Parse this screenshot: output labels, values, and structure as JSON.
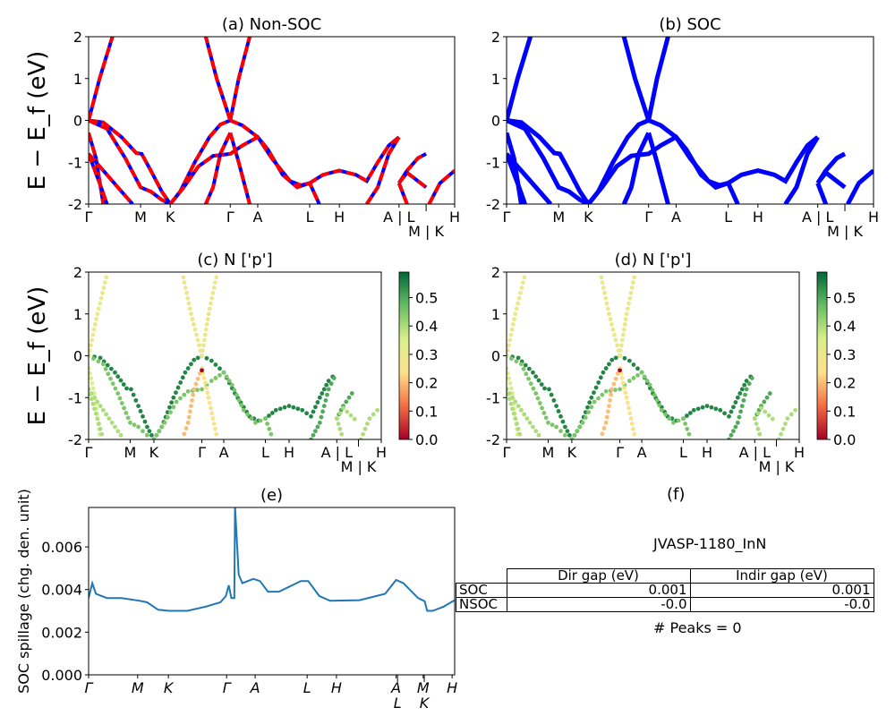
{
  "chart_data": [
    {
      "id": "a",
      "type": "line",
      "title": "(a) Non-SOC",
      "ylabel": "E − E_f (eV)",
      "ylim": [
        -2,
        2
      ],
      "yticks": [
        -2,
        -1,
        0,
        1,
        2
      ],
      "xtick_labels": [
        "Γ",
        "M",
        "K",
        "Γ",
        "A",
        "L",
        "H",
        "A | L",
        "M | K",
        "H"
      ],
      "series_colors": [
        "#0000ff",
        "#ff0000"
      ],
      "line_style": "blue solid with red dashed overlay"
    },
    {
      "id": "b",
      "type": "line",
      "title": "(b) SOC",
      "ylim": [
        -2,
        2
      ],
      "yticks": [
        -2,
        -1,
        0,
        1,
        2
      ],
      "xtick_labels": [
        "Γ",
        "M",
        "K",
        "Γ",
        "A",
        "L",
        "H",
        "A | L",
        "M | K",
        "H"
      ],
      "series_colors": [
        "#0000ff"
      ]
    },
    {
      "id": "c",
      "type": "scatter",
      "title": "(c)  N ['p']",
      "ylabel": "E − E_f (eV)",
      "ylim": [
        -2,
        2
      ],
      "yticks": [
        -2,
        -1,
        0,
        1,
        2
      ],
      "xtick_labels": [
        "Γ",
        "M",
        "K",
        "Γ",
        "A",
        "L",
        "H",
        "A | L",
        "M | K",
        "H"
      ],
      "colorbar": {
        "colormap": "RdYlGn",
        "range": [
          0,
          0.59
        ],
        "ticks": [
          "0.0",
          "0.1",
          "0.2",
          "0.3",
          "0.4",
          "0.5"
        ]
      }
    },
    {
      "id": "d",
      "type": "scatter",
      "title": "(d) N ['p']",
      "ylim": [
        -2,
        2
      ],
      "yticks": [
        -2,
        -1,
        0,
        1,
        2
      ],
      "xtick_labels": [
        "Γ",
        "M",
        "K",
        "Γ",
        "A",
        "L",
        "H",
        "A | L",
        "M | K",
        "H"
      ],
      "colorbar": {
        "colormap": "RdYlGn",
        "range": [
          0,
          0.59
        ],
        "ticks": [
          "0.0",
          "0.1",
          "0.2",
          "0.3",
          "0.4",
          "0.5"
        ]
      }
    },
    {
      "id": "e",
      "type": "line",
      "title": "(e)",
      "ylabel": "SOC spillage (chg. den. unit)",
      "ylim": [
        0,
        0.00785
      ],
      "yticks": [
        "0.000",
        "0.002",
        "0.004",
        "0.006"
      ],
      "xtick_labels": [
        "Γ",
        "M",
        "K",
        "Γ",
        "A",
        "L",
        "H",
        "A",
        "L",
        "M",
        "K",
        "H"
      ],
      "color": "#1f77b4",
      "points": [
        [
          0,
          0.0036
        ],
        [
          0.01,
          0.0043
        ],
        [
          0.02,
          0.0038
        ],
        [
          0.05,
          0.0036
        ],
        [
          0.09,
          0.0036
        ],
        [
          0.14,
          0.00347
        ],
        [
          0.16,
          0.0034
        ],
        [
          0.19,
          0.00305
        ],
        [
          0.22,
          0.003
        ],
        [
          0.27,
          0.003
        ],
        [
          0.32,
          0.0032
        ],
        [
          0.36,
          0.0034
        ],
        [
          0.375,
          0.0037
        ],
        [
          0.383,
          0.0042
        ],
        [
          0.39,
          0.0036
        ],
        [
          0.398,
          0.0036
        ],
        [
          0.4,
          0.0079
        ],
        [
          0.41,
          0.0047
        ],
        [
          0.42,
          0.0043
        ],
        [
          0.45,
          0.0045
        ],
        [
          0.468,
          0.0044
        ],
        [
          0.49,
          0.0039
        ],
        [
          0.52,
          0.0039
        ],
        [
          0.58,
          0.0044
        ],
        [
          0.6,
          0.0044
        ],
        [
          0.63,
          0.0037
        ],
        [
          0.66,
          0.00347
        ],
        [
          0.74,
          0.0035
        ],
        [
          0.81,
          0.0038
        ],
        [
          0.84,
          0.00445
        ],
        [
          0.86,
          0.0043
        ],
        [
          0.9,
          0.0036
        ],
        [
          0.918,
          0.00345
        ],
        [
          0.925,
          0.003
        ],
        [
          0.94,
          0.003
        ],
        [
          0.97,
          0.0032
        ],
        [
          1.0,
          0.0035
        ]
      ]
    }
  ],
  "bands": [
    {
      "w": 0.55,
      "pts": [
        [
          0,
          0
        ],
        [
          0.04,
          -0.05
        ],
        [
          0.09,
          -0.4
        ],
        [
          0.13,
          -0.78
        ],
        [
          0.145,
          -0.8
        ],
        [
          0.17,
          -1.2
        ],
        [
          0.2,
          -1.7
        ],
        [
          0.223,
          -2.0
        ],
        [
          0.25,
          -1.7
        ],
        [
          0.29,
          -1.0
        ],
        [
          0.33,
          -0.4
        ],
        [
          0.36,
          -0.1
        ],
        [
          0.387,
          0
        ],
        [
          0.42,
          -0.12
        ],
        [
          0.462,
          -0.4
        ],
        [
          0.5,
          -0.9
        ],
        [
          0.55,
          -1.45
        ],
        [
          0.58,
          -1.55
        ],
        [
          0.604,
          -1.5
        ],
        [
          0.64,
          -1.3
        ],
        [
          0.685,
          -1.2
        ],
        [
          0.73,
          -1.3
        ],
        [
          0.76,
          -1.45
        ],
        [
          0.79,
          -1.0
        ],
        [
          0.82,
          -0.6
        ],
        [
          0.848,
          -0.4
        ]
      ]
    },
    {
      "w": 0.45,
      "pts": [
        [
          0,
          0
        ],
        [
          0.05,
          -0.2
        ],
        [
          0.1,
          -0.9
        ],
        [
          0.142,
          -1.6
        ],
        [
          0.17,
          -1.7
        ],
        [
          0.2,
          -1.9
        ],
        [
          0.223,
          -2.0
        ]
      ]
    },
    {
      "w": 0.45,
      "pts": [
        [
          0.223,
          -2
        ],
        [
          0.26,
          -1.6
        ],
        [
          0.3,
          -1.1
        ],
        [
          0.34,
          -0.85
        ],
        [
          0.387,
          -0.8
        ],
        [
          0.42,
          -0.6
        ],
        [
          0.462,
          -0.4
        ],
        [
          0.49,
          -0.7
        ],
        [
          0.53,
          -1.3
        ],
        [
          0.57,
          -1.6
        ],
        [
          0.604,
          -1.5
        ],
        [
          0.63,
          -2.0
        ]
      ]
    },
    {
      "w": 0.2,
      "pts": [
        [
          0.387,
          -0.3
        ],
        [
          0.36,
          -0.8
        ],
        [
          0.34,
          -1.6
        ],
        [
          0.32,
          -2
        ]
      ]
    },
    {
      "w": 0.25,
      "pts": [
        [
          0.387,
          -0.3
        ],
        [
          0.41,
          -1.0
        ],
        [
          0.44,
          -2
        ]
      ]
    },
    {
      "w": 0.3,
      "pts": [
        [
          0,
          0
        ],
        [
          0.03,
          1.0
        ],
        [
          0.065,
          2
        ]
      ]
    },
    {
      "w": 0.3,
      "pts": [
        [
          0.387,
          0
        ],
        [
          0.35,
          1.0
        ],
        [
          0.32,
          2
        ]
      ]
    },
    {
      "w": 0.3,
      "pts": [
        [
          0.387,
          0
        ],
        [
          0.41,
          1.0
        ],
        [
          0.44,
          2
        ]
      ]
    },
    {
      "w": 0.35,
      "pts": [
        [
          0,
          -0.3
        ],
        [
          0.02,
          -0.9
        ],
        [
          0.04,
          -2
        ]
      ]
    },
    {
      "w": 0.4,
      "pts": [
        [
          0,
          -0.8
        ],
        [
          0.04,
          -1.2
        ],
        [
          0.1,
          -1.8
        ],
        [
          0.12,
          -2
        ]
      ]
    },
    {
      "w": 0.4,
      "pts": [
        [
          0,
          -0.8
        ],
        [
          0.03,
          -1.5
        ],
        [
          0.05,
          -2
        ]
      ]
    },
    {
      "w": 0.5,
      "pts": [
        [
          0.76,
          -2
        ],
        [
          0.79,
          -1.6
        ],
        [
          0.82,
          -0.8
        ],
        [
          0.848,
          -0.4
        ]
      ]
    },
    {
      "w": 0.5,
      "pts": [
        [
          0.848,
          -1.5
        ],
        [
          0.87,
          -1.2
        ],
        [
          0.9,
          -0.9
        ],
        [
          0.922,
          -0.8
        ]
      ]
    },
    {
      "w": 0.4,
      "pts": [
        [
          0.848,
          -1.5
        ],
        [
          0.87,
          -1.25
        ],
        [
          0.922,
          -1.6
        ]
      ]
    },
    {
      "w": 0.4,
      "pts": [
        [
          0.848,
          -1.5
        ],
        [
          0.87,
          -2
        ]
      ]
    },
    {
      "w": 0.4,
      "pts": [
        [
          0.93,
          -2
        ],
        [
          0.96,
          -1.5
        ],
        [
          1.0,
          -1.2
        ]
      ]
    }
  ],
  "panel_f": {
    "title": "(f)",
    "material": "JVASP-1180_InN",
    "table": {
      "headers": [
        "Dir gap (eV)",
        "Indir gap (eV)"
      ],
      "rows": [
        {
          "label": "SOC",
          "dir": "0.001",
          "indir": "0.001"
        },
        {
          "label": "NSOC",
          "dir": "-0.0",
          "indir": "-0.0"
        }
      ]
    },
    "peaks": "# Peaks = 0"
  }
}
